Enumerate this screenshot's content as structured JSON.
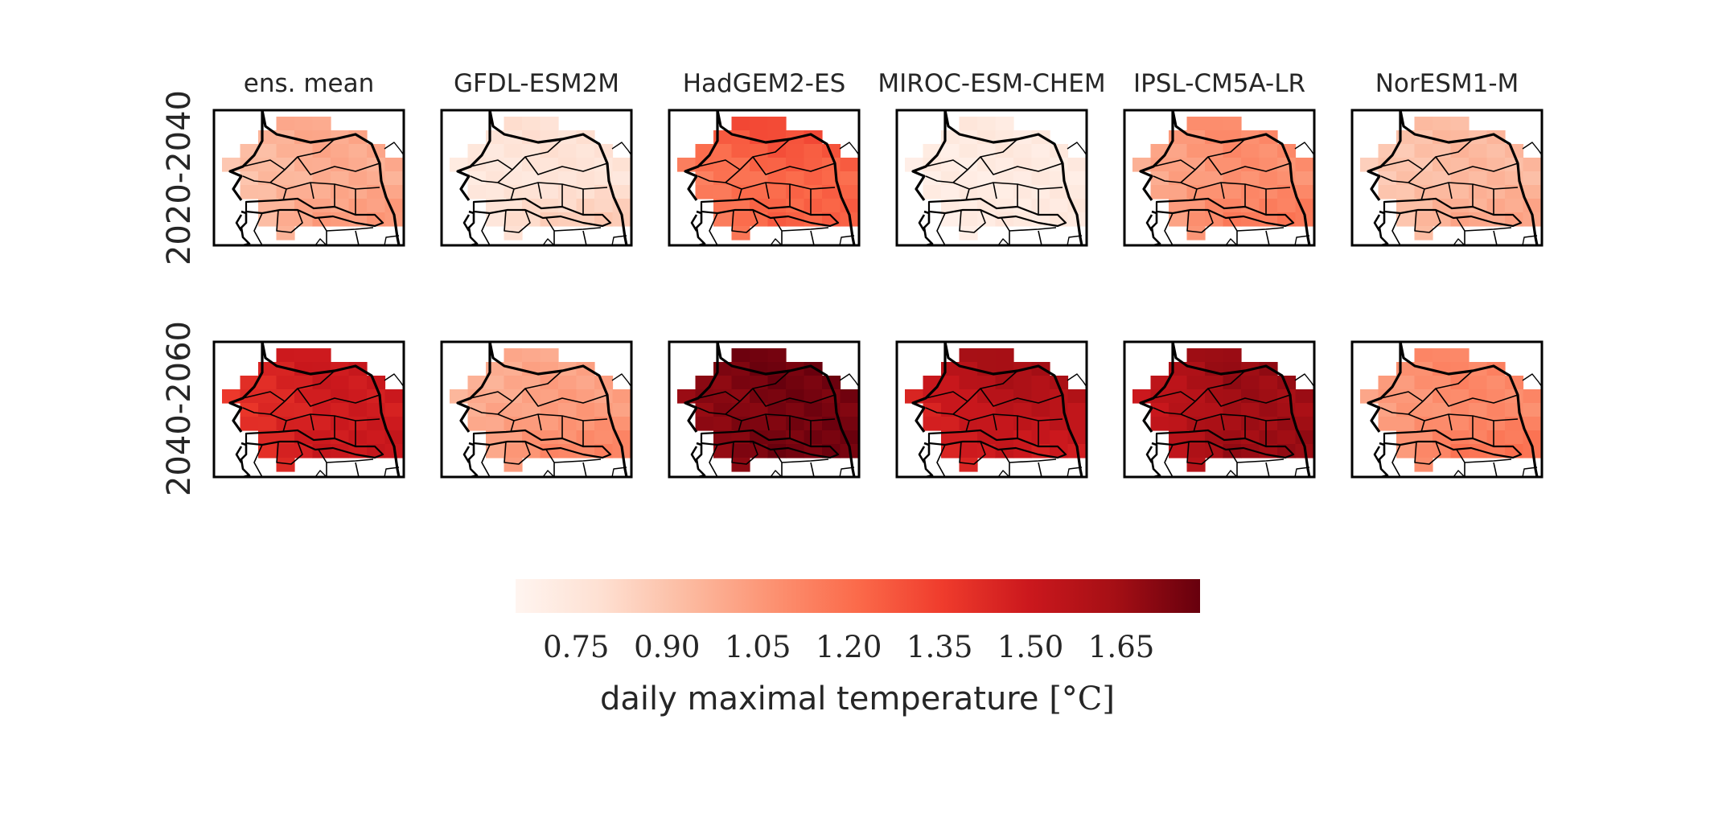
{
  "figure": {
    "columns": [
      "ens. mean",
      "GFDL-ESM2M",
      "HadGEM2-ES",
      "MIROC-ESM-CHEM",
      "IPSL-CM5A-LR",
      "NorESM1-M"
    ],
    "rows": [
      "2020-2040",
      "2040-2060"
    ]
  },
  "colorbar": {
    "label_text": "daily maximal temperature ",
    "label_unit": "[°C]",
    "ticks": [
      "0.75",
      "0.90",
      "1.05",
      "1.20",
      "1.35",
      "1.50",
      "1.65"
    ],
    "range": [
      0.65,
      1.78
    ],
    "colormap": "Reds",
    "colors": [
      "#fff5f0",
      "#fee0d2",
      "#fcbba1",
      "#fc9272",
      "#fb6a4a",
      "#ef3b2c",
      "#cb181d",
      "#a50f15",
      "#67000d"
    ]
  },
  "chart_data": {
    "type": "heatmap",
    "variable": "daily maximal temperature",
    "unit": "°C",
    "panels": [
      {
        "row": "2020-2040",
        "column": "ens. mean",
        "west": 0.88,
        "center": 0.98,
        "north": 1.02,
        "south": 1.08
      },
      {
        "row": "2020-2040",
        "column": "GFDL-ESM2M",
        "west": 0.72,
        "center": 0.76,
        "north": 0.8,
        "south": 0.92
      },
      {
        "row": "2020-2040",
        "column": "HadGEM2-ES",
        "west": 1.12,
        "center": 1.22,
        "north": 1.36,
        "south": 1.26
      },
      {
        "row": "2020-2040",
        "column": "MIROC-ESM-CHEM",
        "west": 0.7,
        "center": 0.72,
        "north": 0.74,
        "south": 0.74
      },
      {
        "row": "2020-2040",
        "column": "IPSL-CM5A-LR",
        "west": 0.96,
        "center": 1.08,
        "north": 1.12,
        "south": 1.2
      },
      {
        "row": "2020-2040",
        "column": "NorESM1-M",
        "west": 0.86,
        "center": 0.94,
        "north": 0.94,
        "south": 1.04
      },
      {
        "row": "2040-2060",
        "column": "ens. mean",
        "west": 1.36,
        "center": 1.48,
        "north": 1.52,
        "south": 1.52
      },
      {
        "row": "2040-2060",
        "column": "GFDL-ESM2M",
        "west": 0.96,
        "center": 1.04,
        "north": 1.0,
        "south": 1.16
      },
      {
        "row": "2040-2060",
        "column": "HadGEM2-ES",
        "west": 1.66,
        "center": 1.74,
        "north": 1.78,
        "south": 1.76
      },
      {
        "row": "2040-2060",
        "column": "MIROC-ESM-CHEM",
        "west": 1.42,
        "center": 1.56,
        "north": 1.68,
        "south": 1.46
      },
      {
        "row": "2040-2060",
        "column": "IPSL-CM5A-LR",
        "west": 1.48,
        "center": 1.64,
        "north": 1.7,
        "south": 1.68
      },
      {
        "row": "2040-2060",
        "column": "NorESM1-M",
        "west": 1.0,
        "center": 1.1,
        "north": 1.14,
        "south": 1.22
      }
    ]
  }
}
